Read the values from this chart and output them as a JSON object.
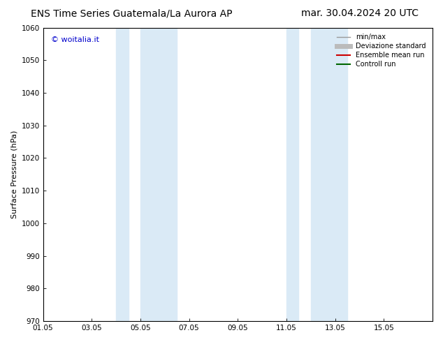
{
  "title_left": "ENS Time Series Guatemala/La Aurora AP",
  "title_right": "mar. 30.04.2024 20 UTC",
  "ylabel": "Surface Pressure (hPa)",
  "ylim": [
    970,
    1060
  ],
  "yticks": [
    970,
    980,
    990,
    1000,
    1010,
    1020,
    1030,
    1040,
    1050,
    1060
  ],
  "xlim": [
    0,
    16
  ],
  "xtick_labels": [
    "01.05",
    "03.05",
    "05.05",
    "07.05",
    "09.05",
    "11.05",
    "13.05",
    "15.05"
  ],
  "xtick_positions": [
    0,
    2,
    4,
    6,
    8,
    10,
    12,
    14
  ],
  "shaded_bands": [
    {
      "x_start": 3.0,
      "x_end": 3.5
    },
    {
      "x_start": 4.0,
      "x_end": 5.5
    },
    {
      "x_start": 10.0,
      "x_end": 10.5
    },
    {
      "x_start": 11.0,
      "x_end": 12.5
    }
  ],
  "shaded_color": "#daeaf6",
  "background_color": "#ffffff",
  "watermark_text": "© woitalia.it",
  "watermark_color": "#0000cc",
  "legend_entries": [
    {
      "label": "min/max",
      "color": "#999999",
      "lw": 1.0,
      "ls": "-"
    },
    {
      "label": "Deviazione standard",
      "color": "#bbbbbb",
      "lw": 5,
      "ls": "-"
    },
    {
      "label": "Ensemble mean run",
      "color": "#cc0000",
      "lw": 1.5,
      "ls": "-"
    },
    {
      "label": "Controll run",
      "color": "#006600",
      "lw": 1.5,
      "ls": "-"
    }
  ],
  "title_fontsize": 10,
  "axis_fontsize": 8,
  "tick_fontsize": 7.5,
  "legend_fontsize": 7
}
